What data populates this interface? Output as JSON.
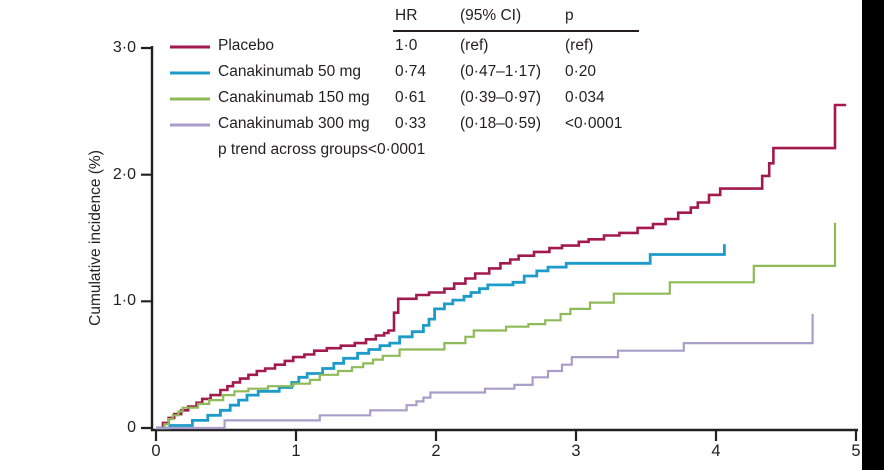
{
  "chart_data": {
    "type": "line",
    "subtype": "kaplan-meier-step-cumulative-incidence",
    "title": "",
    "xlabel": "",
    "ylabel": "Cumulative incidence (%)",
    "xlim": [
      0,
      5
    ],
    "ylim": [
      0,
      3.0
    ],
    "grid": false,
    "legend_position": "top-left",
    "x_ticks": {
      "values": [
        0,
        1,
        2,
        3,
        4,
        5
      ],
      "labels": [
        "0",
        "1",
        "2",
        "3",
        "4",
        "5"
      ]
    },
    "y_ticks": {
      "values": [
        0,
        1,
        2,
        3
      ],
      "labels": [
        "0",
        "1·0",
        "2·0",
        "3·0"
      ]
    },
    "p_trend_note": "p trend across groups<0·0001",
    "table": {
      "headers": [
        "HR",
        "(95% CI)",
        "p"
      ]
    },
    "colors": {
      "axis": "#231F20",
      "text": "#231F20",
      "frame_bar": "#000000"
    },
    "series": [
      {
        "name": "Placebo",
        "color": "#A21A4D",
        "stroke_width": 2.6,
        "hr": "1·0",
        "ci": "(ref)",
        "p": "(ref)",
        "end_x": 4.93,
        "points": [
          [
            0,
            0
          ],
          [
            0.05,
            0.04
          ],
          [
            0.09,
            0.08
          ],
          [
            0.13,
            0.11
          ],
          [
            0.18,
            0.14
          ],
          [
            0.23,
            0.17
          ],
          [
            0.29,
            0.2
          ],
          [
            0.33,
            0.23
          ],
          [
            0.39,
            0.26
          ],
          [
            0.46,
            0.3
          ],
          [
            0.51,
            0.33
          ],
          [
            0.55,
            0.36
          ],
          [
            0.6,
            0.39
          ],
          [
            0.66,
            0.42
          ],
          [
            0.72,
            0.45
          ],
          [
            0.78,
            0.47
          ],
          [
            0.85,
            0.5
          ],
          [
            0.92,
            0.53
          ],
          [
            0.98,
            0.56
          ],
          [
            1.06,
            0.58
          ],
          [
            1.13,
            0.61
          ],
          [
            1.22,
            0.63
          ],
          [
            1.32,
            0.65
          ],
          [
            1.42,
            0.67
          ],
          [
            1.5,
            0.7
          ],
          [
            1.57,
            0.73
          ],
          [
            1.63,
            0.75
          ],
          [
            1.66,
            0.77
          ],
          [
            1.7,
            0.91
          ],
          [
            1.73,
            1.02
          ],
          [
            1.86,
            1.05
          ],
          [
            1.95,
            1.07
          ],
          [
            2.06,
            1.1
          ],
          [
            2.13,
            1.14
          ],
          [
            2.21,
            1.18
          ],
          [
            2.28,
            1.22
          ],
          [
            2.38,
            1.26
          ],
          [
            2.46,
            1.3
          ],
          [
            2.53,
            1.33
          ],
          [
            2.59,
            1.36
          ],
          [
            2.7,
            1.39
          ],
          [
            2.81,
            1.42
          ],
          [
            2.9,
            1.44
          ],
          [
            3.02,
            1.47
          ],
          [
            3.09,
            1.49
          ],
          [
            3.2,
            1.52
          ],
          [
            3.31,
            1.54
          ],
          [
            3.44,
            1.58
          ],
          [
            3.55,
            1.61
          ],
          [
            3.64,
            1.65
          ],
          [
            3.73,
            1.7
          ],
          [
            3.82,
            1.74
          ],
          [
            3.87,
            1.78
          ],
          [
            3.95,
            1.84
          ],
          [
            4.03,
            1.89
          ],
          [
            4.33,
            1.99
          ],
          [
            4.38,
            2.09
          ],
          [
            4.41,
            2.21
          ],
          [
            4.85,
            2.55
          ]
        ]
      },
      {
        "name": "Canakinumab 50 mg",
        "color": "#1D9BC9",
        "stroke_width": 2.8,
        "hr": "0·74",
        "ci": "(0·47–1·17)",
        "p": "0·20",
        "end_x": 4.06,
        "points": [
          [
            0,
            0
          ],
          [
            0.1,
            0.02
          ],
          [
            0.26,
            0.06
          ],
          [
            0.37,
            0.1
          ],
          [
            0.46,
            0.14
          ],
          [
            0.53,
            0.18
          ],
          [
            0.59,
            0.22
          ],
          [
            0.65,
            0.26
          ],
          [
            0.73,
            0.29
          ],
          [
            0.88,
            0.32
          ],
          [
            0.97,
            0.36
          ],
          [
            1.02,
            0.4
          ],
          [
            1.08,
            0.43
          ],
          [
            1.19,
            0.47
          ],
          [
            1.27,
            0.51
          ],
          [
            1.34,
            0.55
          ],
          [
            1.44,
            0.59
          ],
          [
            1.52,
            0.62
          ],
          [
            1.6,
            0.65
          ],
          [
            1.67,
            0.67
          ],
          [
            1.74,
            0.72
          ],
          [
            1.83,
            0.76
          ],
          [
            1.91,
            0.81
          ],
          [
            1.95,
            0.86
          ],
          [
            1.99,
            0.94
          ],
          [
            2.06,
            0.98
          ],
          [
            2.12,
            1.01
          ],
          [
            2.2,
            1.04
          ],
          [
            2.25,
            1.07
          ],
          [
            2.31,
            1.1
          ],
          [
            2.37,
            1.13
          ],
          [
            2.55,
            1.15
          ],
          [
            2.63,
            1.2
          ],
          [
            2.72,
            1.24
          ],
          [
            2.8,
            1.27
          ],
          [
            2.93,
            1.3
          ],
          [
            3.53,
            1.37
          ],
          [
            4.06,
            1.45
          ]
        ]
      },
      {
        "name": "Canakinumab 150 mg",
        "color": "#8FBA58",
        "stroke_width": 2.2,
        "hr": "0·61",
        "ci": "(0·39–0·97)",
        "p": "0·034",
        "end_x": 4.85,
        "points": [
          [
            0,
            0
          ],
          [
            0.06,
            0.03
          ],
          [
            0.09,
            0.07
          ],
          [
            0.12,
            0.1
          ],
          [
            0.16,
            0.13
          ],
          [
            0.19,
            0.16
          ],
          [
            0.3,
            0.19
          ],
          [
            0.38,
            0.22
          ],
          [
            0.48,
            0.26
          ],
          [
            0.56,
            0.29
          ],
          [
            0.66,
            0.31
          ],
          [
            0.8,
            0.33
          ],
          [
            0.98,
            0.35
          ],
          [
            1.1,
            0.38
          ],
          [
            1.17,
            0.42
          ],
          [
            1.3,
            0.45
          ],
          [
            1.4,
            0.48
          ],
          [
            1.48,
            0.51
          ],
          [
            1.55,
            0.54
          ],
          [
            1.62,
            0.57
          ],
          [
            1.74,
            0.62
          ],
          [
            2.06,
            0.67
          ],
          [
            2.21,
            0.72
          ],
          [
            2.27,
            0.77
          ],
          [
            2.5,
            0.8
          ],
          [
            2.66,
            0.82
          ],
          [
            2.78,
            0.85
          ],
          [
            2.89,
            0.9
          ],
          [
            2.96,
            0.94
          ],
          [
            3.1,
            0.99
          ],
          [
            3.27,
            1.06
          ],
          [
            3.67,
            1.15
          ],
          [
            4.27,
            1.28
          ],
          [
            4.85,
            1.62
          ]
        ]
      },
      {
        "name": "Canakinumab 300 mg",
        "color": "#A89EC9",
        "stroke_width": 2.2,
        "hr": "0·33",
        "ci": "(0·18–0·59)",
        "p": "<0·0001",
        "end_x": 4.69,
        "points": [
          [
            0,
            0
          ],
          [
            0.49,
            0.06
          ],
          [
            1.17,
            0.1
          ],
          [
            1.53,
            0.14
          ],
          [
            1.79,
            0.18
          ],
          [
            1.86,
            0.21
          ],
          [
            1.91,
            0.24
          ],
          [
            1.96,
            0.28
          ],
          [
            2.35,
            0.31
          ],
          [
            2.56,
            0.34
          ],
          [
            2.69,
            0.4
          ],
          [
            2.8,
            0.45
          ],
          [
            2.9,
            0.5
          ],
          [
            2.97,
            0.56
          ],
          [
            3.3,
            0.61
          ],
          [
            3.77,
            0.67
          ],
          [
            4.69,
            0.9
          ]
        ]
      }
    ]
  }
}
